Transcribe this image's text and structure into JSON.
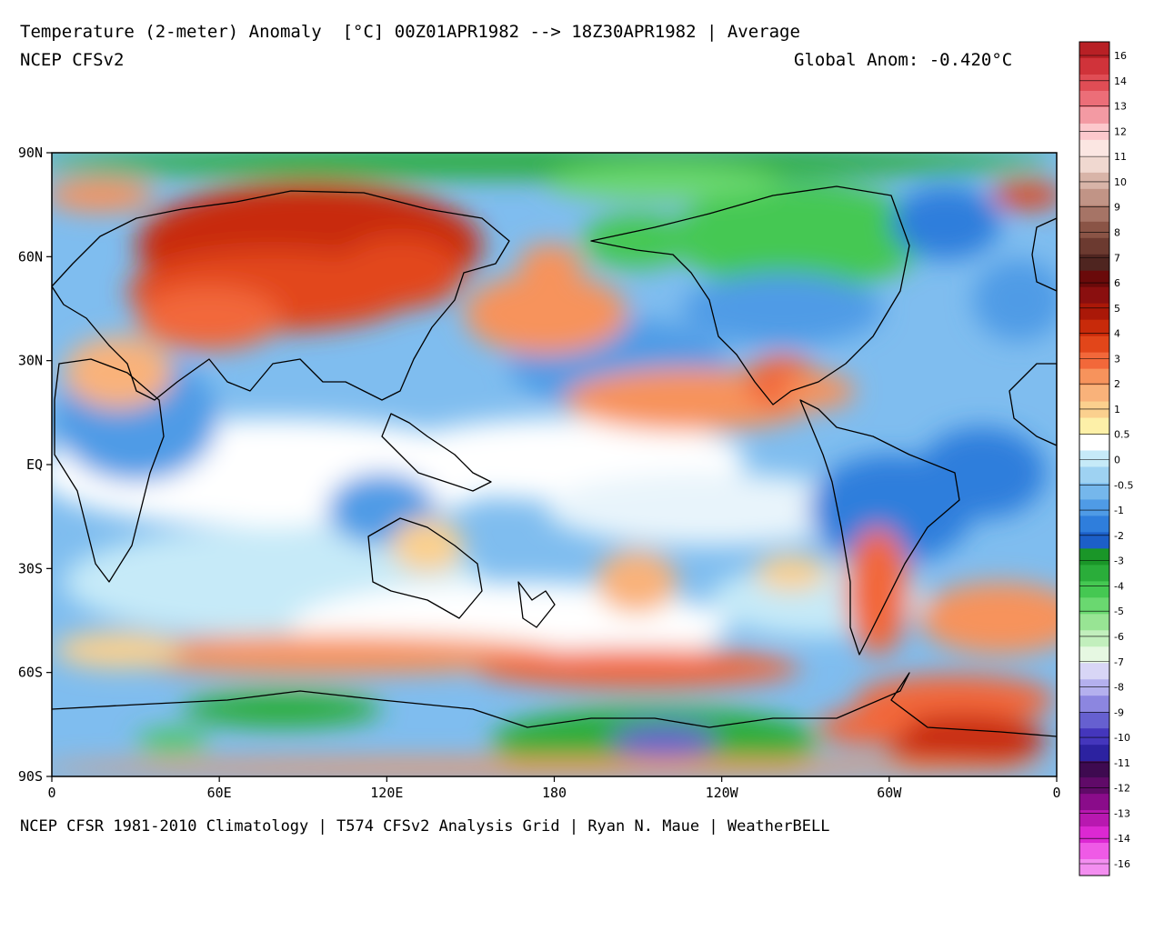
{
  "header": {
    "title": "Temperature (2-meter) Anomaly  [°C] 00Z01APR1982 --> 18Z30APR1982 | Average",
    "model": "NCEP CFSv2",
    "global_anomaly": "Global Anom: -0.420°C"
  },
  "footer": {
    "credit": "NCEP CFSR 1981-2010 Climatology | T574 CFSv2 Analysis Grid | Ryan N. Maue | WeatherBELL"
  },
  "map": {
    "projection": "equirectangular",
    "lon_labels": [
      "0",
      "60E",
      "120E",
      "180",
      "120W",
      "60W",
      "0"
    ],
    "lat_labels": [
      "90N",
      "60N",
      "30N",
      "EQ",
      "30S",
      "60S",
      "90S"
    ],
    "dominant_anomalies": [
      {
        "region": "Siberia / Central Asia",
        "sign": "warm"
      },
      {
        "region": "North Pacific",
        "sign": "warm"
      },
      {
        "region": "Eastern tropical Pacific",
        "sign": "warm"
      },
      {
        "region": "Canada / Arctic Ocean",
        "sign": "cold"
      },
      {
        "region": "Antarctica (Ross sector)",
        "sign": "cold"
      },
      {
        "region": "Weddell Sea / Antarctic Peninsula",
        "sign": "warm"
      }
    ]
  },
  "colorbar": {
    "labels": [
      "16",
      "14",
      "13",
      "12",
      "11",
      "10",
      "9",
      "8",
      "7",
      "6",
      "5",
      "4",
      "3",
      "2",
      "1",
      "0.5",
      "0",
      "-0.5",
      "-1",
      "-2",
      "-3",
      "-4",
      "-5",
      "-6",
      "-7",
      "-8",
      "-9",
      "-10",
      "-11",
      "-12",
      "-13",
      "-14",
      "-16"
    ],
    "colors": [
      "#b82025",
      "#d0333a",
      "#e04d55",
      "#ec6e78",
      "#f39aa3",
      "#fcc8cc",
      "#fbe6e2",
      "#f0d8d0",
      "#d8b4a8",
      "#c19486",
      "#a67466",
      "#8a5446",
      "#6c3a30",
      "#4f2520",
      "#6a0a0a",
      "#8a0f0f",
      "#aa1808",
      "#c82a0a",
      "#e2461a",
      "#f2683a",
      "#f7935c",
      "#f9b27a",
      "#fbd08e",
      "#fdf0a8",
      "#ffffff",
      "#c6eaf8",
      "#9ed2f2",
      "#75b7ec",
      "#4f9be6",
      "#2f7edc",
      "#1c5fc8",
      "#1a9628",
      "#2aad3a",
      "#45c852",
      "#6ad870",
      "#98e494",
      "#c2efbd",
      "#e6f8e2",
      "#d8d6f6",
      "#b4b0ee",
      "#8c86e0",
      "#6660d0",
      "#4436bc",
      "#2c22a0",
      "#3e0a50",
      "#600a68",
      "#8a0c8a",
      "#b818b0",
      "#dc28d2",
      "#ef5ae6",
      "#f38ef0"
    ]
  }
}
